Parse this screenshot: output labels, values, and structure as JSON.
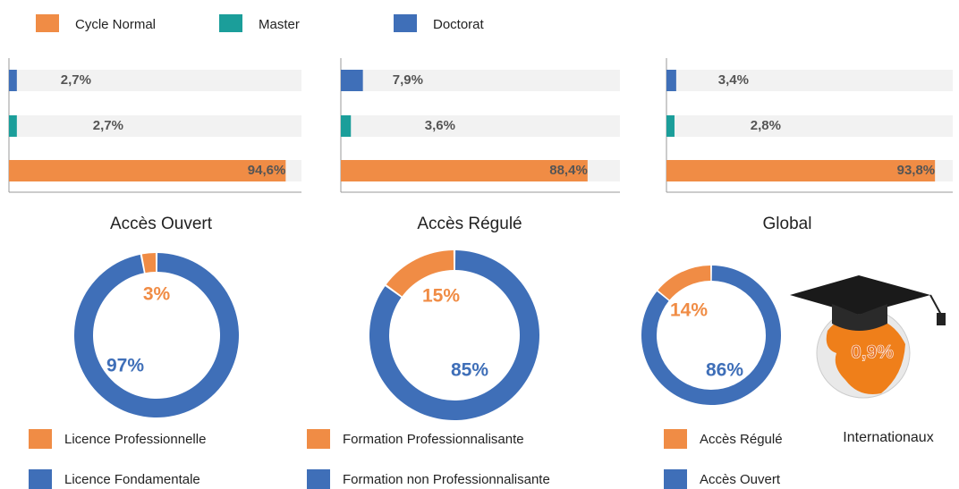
{
  "legend": [
    {
      "name": "Cycle Normal",
      "color": "#f08c45"
    },
    {
      "name": "Master",
      "color": "#1b9e9a"
    },
    {
      "name": "Doctorat",
      "color": "#3f6fb8"
    }
  ],
  "chart_data": [
    {
      "type": "bar",
      "title": "Accès Ouvert",
      "values": [
        94.6,
        2.7,
        2.7
      ],
      "value_labels": [
        "94,6%",
        "2,7%",
        "2,7%"
      ],
      "xlim": [
        0,
        100
      ]
    },
    {
      "type": "bar",
      "title": "Accès Régulé",
      "values": [
        88.4,
        3.6,
        7.9
      ],
      "value_labels": [
        "88,4%",
        "3,6%",
        "7,9%"
      ],
      "xlim": [
        0,
        100
      ]
    },
    {
      "type": "bar",
      "title": "Global",
      "values": [
        93.8,
        2.8,
        3.4
      ],
      "value_labels": [
        "93,8%",
        "2,8%",
        "3,4%"
      ],
      "xlim": [
        0,
        100
      ]
    },
    {
      "type": "pie",
      "categories": [
        "Licence Professionnelle",
        "Licence Fondamentale"
      ],
      "values": [
        3,
        97
      ],
      "value_labels": [
        "3%",
        "97%"
      ],
      "colors": [
        "#f08c45",
        "#3f6fb8"
      ]
    },
    {
      "type": "pie",
      "categories": [
        "Formation Professionnalisante",
        "Formation non Professionnalisante"
      ],
      "values": [
        15,
        85
      ],
      "value_labels": [
        "15%",
        "85%"
      ],
      "colors": [
        "#f08c45",
        "#3f6fb8"
      ]
    },
    {
      "type": "pie",
      "categories": [
        "Accès Régulé",
        "Accès Ouvert"
      ],
      "values": [
        14,
        86
      ],
      "value_labels": [
        "14%",
        "86%"
      ],
      "colors": [
        "#f08c45",
        "#3f6fb8"
      ]
    }
  ],
  "internationaux": {
    "label": "Internationaux",
    "value": 0.9,
    "value_label": "0,9%"
  }
}
